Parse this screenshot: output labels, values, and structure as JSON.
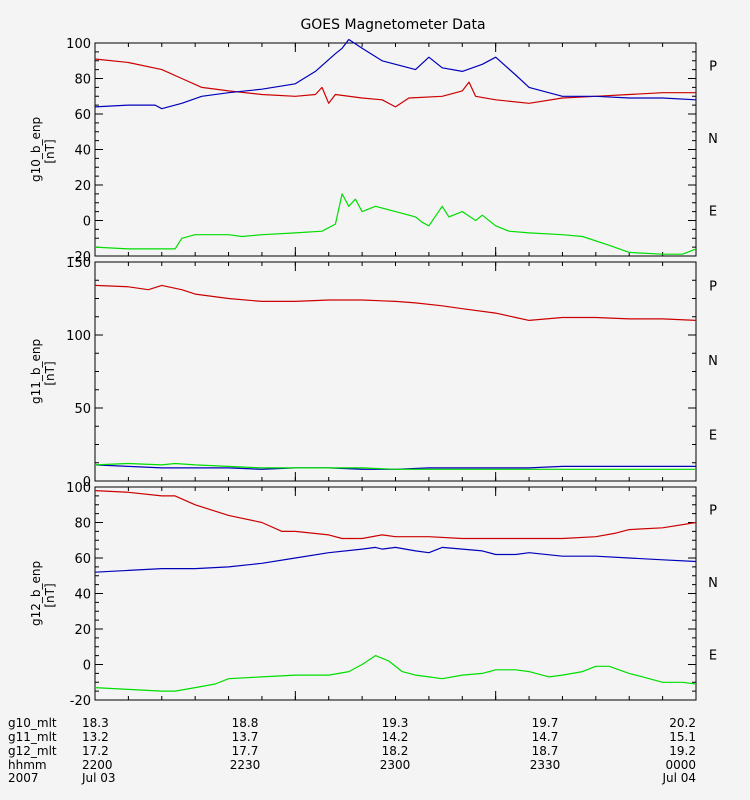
{
  "chart_data": {
    "type": "line",
    "title": "GOES Magnetometer Data",
    "x": [
      "2200",
      "2230",
      "2300",
      "2330",
      "0000"
    ],
    "x_range": [
      "2200",
      "0000"
    ],
    "series_colors": {
      "P": "#cc0000",
      "N": "#00dd00",
      "E": "#0000bb"
    },
    "side_labels": [
      "P",
      "N",
      "E"
    ],
    "panels": [
      {
        "ylabel": "g10_b_enp",
        "unit": "[nT]",
        "ylim": [
          -20,
          100
        ],
        "yticks": [
          -20,
          0,
          20,
          40,
          60,
          80,
          100
        ],
        "series": [
          {
            "name": "P",
            "color": "#cc0000",
            "points": [
              [
                0,
                91
              ],
              [
                5,
                89
              ],
              [
                10,
                85
              ],
              [
                13,
                80
              ],
              [
                16,
                75
              ],
              [
                20,
                73
              ],
              [
                25,
                71
              ],
              [
                30,
                70
              ],
              [
                33,
                71
              ],
              [
                34,
                75
              ],
              [
                35,
                66
              ],
              [
                36,
                71
              ],
              [
                40,
                69
              ],
              [
                43,
                68
              ],
              [
                45,
                64
              ],
              [
                47,
                69
              ],
              [
                52,
                70
              ],
              [
                55,
                73
              ],
              [
                56,
                78
              ],
              [
                57,
                70
              ],
              [
                60,
                68
              ],
              [
                65,
                66
              ],
              [
                70,
                69
              ],
              [
                75,
                70
              ],
              [
                80,
                71
              ],
              [
                85,
                72
              ],
              [
                90,
                72
              ]
            ]
          },
          {
            "name": "E",
            "color": "#0000bb",
            "points": [
              [
                0,
                64
              ],
              [
                5,
                65
              ],
              [
                9,
                65
              ],
              [
                10,
                63
              ],
              [
                13,
                66
              ],
              [
                16,
                70
              ],
              [
                20,
                72
              ],
              [
                25,
                74
              ],
              [
                30,
                77
              ],
              [
                33,
                84
              ],
              [
                36,
                94
              ],
              [
                37,
                97
              ],
              [
                38,
                102
              ],
              [
                40,
                97
              ],
              [
                43,
                90
              ],
              [
                45,
                88
              ],
              [
                48,
                85
              ],
              [
                50,
                92
              ],
              [
                52,
                86
              ],
              [
                55,
                84
              ],
              [
                58,
                88
              ],
              [
                60,
                92
              ],
              [
                63,
                82
              ],
              [
                65,
                75
              ],
              [
                70,
                70
              ],
              [
                75,
                70
              ],
              [
                80,
                69
              ],
              [
                85,
                69
              ],
              [
                90,
                68
              ]
            ]
          },
          {
            "name": "N",
            "color": "#00dd00",
            "points": [
              [
                0,
                -15
              ],
              [
                5,
                -16
              ],
              [
                12,
                -16
              ],
              [
                13,
                -10
              ],
              [
                15,
                -8
              ],
              [
                20,
                -8
              ],
              [
                22,
                -9
              ],
              [
                25,
                -8
              ],
              [
                30,
                -7
              ],
              [
                34,
                -6
              ],
              [
                36,
                -2
              ],
              [
                37,
                15
              ],
              [
                38,
                8
              ],
              [
                39,
                12
              ],
              [
                40,
                5
              ],
              [
                42,
                8
              ],
              [
                45,
                5
              ],
              [
                48,
                2
              ],
              [
                49,
                -1
              ],
              [
                50,
                -3
              ],
              [
                52,
                8
              ],
              [
                53,
                2
              ],
              [
                55,
                5
              ],
              [
                57,
                0
              ],
              [
                58,
                3
              ],
              [
                60,
                -3
              ],
              [
                62,
                -6
              ],
              [
                65,
                -7
              ],
              [
                70,
                -8
              ],
              [
                73,
                -9
              ],
              [
                77,
                -14
              ],
              [
                80,
                -18
              ],
              [
                85,
                -19
              ],
              [
                88,
                -19
              ],
              [
                90,
                -16
              ]
            ]
          }
        ]
      },
      {
        "ylabel": "g11_b_enp",
        "unit": "[nT]",
        "ylim": [
          0,
          150
        ],
        "yticks": [
          0,
          50,
          100,
          150
        ],
        "series": [
          {
            "name": "P",
            "color": "#cc0000",
            "points": [
              [
                0,
                134
              ],
              [
                5,
                133
              ],
              [
                8,
                131
              ],
              [
                10,
                134
              ],
              [
                13,
                131
              ],
              [
                15,
                128
              ],
              [
                20,
                125
              ],
              [
                25,
                123
              ],
              [
                30,
                123
              ],
              [
                35,
                124
              ],
              [
                40,
                124
              ],
              [
                45,
                123
              ],
              [
                48,
                122
              ],
              [
                52,
                120
              ],
              [
                55,
                118
              ],
              [
                60,
                115
              ],
              [
                63,
                112
              ],
              [
                65,
                110
              ],
              [
                70,
                112
              ],
              [
                75,
                112
              ],
              [
                80,
                111
              ],
              [
                85,
                111
              ],
              [
                90,
                110
              ]
            ]
          },
          {
            "name": "E",
            "color": "#0000bb",
            "points": [
              [
                0,
                11
              ],
              [
                5,
                10
              ],
              [
                10,
                9
              ],
              [
                15,
                9
              ],
              [
                20,
                9
              ],
              [
                25,
                8
              ],
              [
                30,
                9
              ],
              [
                35,
                9
              ],
              [
                40,
                8
              ],
              [
                45,
                8
              ],
              [
                50,
                9
              ],
              [
                55,
                9
              ],
              [
                60,
                9
              ],
              [
                65,
                9
              ],
              [
                70,
                10
              ],
              [
                75,
                10
              ],
              [
                80,
                10
              ],
              [
                85,
                10
              ],
              [
                90,
                10
              ]
            ]
          },
          {
            "name": "N",
            "color": "#00dd00",
            "points": [
              [
                0,
                11
              ],
              [
                5,
                12
              ],
              [
                10,
                11
              ],
              [
                12,
                12
              ],
              [
                15,
                11
              ],
              [
                20,
                10
              ],
              [
                25,
                9
              ],
              [
                30,
                9
              ],
              [
                35,
                9
              ],
              [
                40,
                9
              ],
              [
                45,
                8
              ],
              [
                50,
                8
              ],
              [
                55,
                8
              ],
              [
                60,
                8
              ],
              [
                65,
                8
              ],
              [
                70,
                8
              ],
              [
                75,
                8
              ],
              [
                80,
                8
              ],
              [
                85,
                8
              ],
              [
                90,
                8
              ]
            ]
          }
        ]
      },
      {
        "ylabel": "g12_b_enp",
        "unit": "[nT]",
        "ylim": [
          -20,
          100
        ],
        "yticks": [
          -20,
          0,
          20,
          40,
          60,
          80,
          100
        ],
        "series": [
          {
            "name": "P",
            "color": "#cc0000",
            "points": [
              [
                0,
                98
              ],
              [
                5,
                97
              ],
              [
                10,
                95
              ],
              [
                12,
                95
              ],
              [
                15,
                90
              ],
              [
                20,
                84
              ],
              [
                25,
                80
              ],
              [
                28,
                75
              ],
              [
                30,
                75
              ],
              [
                35,
                73
              ],
              [
                37,
                71
              ],
              [
                40,
                71
              ],
              [
                43,
                73
              ],
              [
                45,
                72
              ],
              [
                50,
                72
              ],
              [
                55,
                71
              ],
              [
                60,
                71
              ],
              [
                65,
                71
              ],
              [
                70,
                71
              ],
              [
                75,
                72
              ],
              [
                78,
                74
              ],
              [
                80,
                76
              ],
              [
                85,
                77
              ],
              [
                90,
                80
              ]
            ]
          },
          {
            "name": "E",
            "color": "#0000bb",
            "points": [
              [
                0,
                52
              ],
              [
                5,
                53
              ],
              [
                10,
                54
              ],
              [
                15,
                54
              ],
              [
                20,
                55
              ],
              [
                25,
                57
              ],
              [
                30,
                60
              ],
              [
                35,
                63
              ],
              [
                40,
                65
              ],
              [
                42,
                66
              ],
              [
                43,
                65
              ],
              [
                45,
                66
              ],
              [
                48,
                64
              ],
              [
                50,
                63
              ],
              [
                52,
                66
              ],
              [
                55,
                65
              ],
              [
                58,
                64
              ],
              [
                60,
                62
              ],
              [
                63,
                62
              ],
              [
                65,
                63
              ],
              [
                70,
                61
              ],
              [
                75,
                61
              ],
              [
                80,
                60
              ],
              [
                85,
                59
              ],
              [
                90,
                58
              ]
            ]
          },
          {
            "name": "N",
            "color": "#00dd00",
            "points": [
              [
                0,
                -13
              ],
              [
                5,
                -14
              ],
              [
                10,
                -15
              ],
              [
                12,
                -15
              ],
              [
                15,
                -13
              ],
              [
                18,
                -11
              ],
              [
                20,
                -8
              ],
              [
                25,
                -7
              ],
              [
                30,
                -6
              ],
              [
                35,
                -6
              ],
              [
                38,
                -4
              ],
              [
                40,
                0
              ],
              [
                42,
                5
              ],
              [
                44,
                2
              ],
              [
                46,
                -4
              ],
              [
                48,
                -6
              ],
              [
                50,
                -7
              ],
              [
                52,
                -8
              ],
              [
                55,
                -6
              ],
              [
                58,
                -5
              ],
              [
                60,
                -3
              ],
              [
                63,
                -3
              ],
              [
                65,
                -4
              ],
              [
                68,
                -7
              ],
              [
                70,
                -6
              ],
              [
                73,
                -4
              ],
              [
                75,
                -1
              ],
              [
                77,
                -1
              ],
              [
                80,
                -5
              ],
              [
                83,
                -8
              ],
              [
                85,
                -10
              ],
              [
                88,
                -10
              ],
              [
                90,
                -11
              ]
            ]
          }
        ]
      }
    ],
    "footer": {
      "labels": [
        "g10_mlt",
        "g11_mlt",
        "g12_mlt",
        "hhmm",
        "2007"
      ],
      "columns": [
        [
          "18.3",
          "13.2",
          "17.2",
          "2200",
          "Jul 03"
        ],
        [
          "18.8",
          "13.7",
          "17.7",
          "2230",
          ""
        ],
        [
          "19.3",
          "14.2",
          "18.2",
          "2300",
          ""
        ],
        [
          "19.7",
          "14.7",
          "18.7",
          "2330",
          ""
        ],
        [
          "20.2",
          "15.1",
          "19.2",
          "0000",
          "Jul 04"
        ]
      ]
    }
  }
}
